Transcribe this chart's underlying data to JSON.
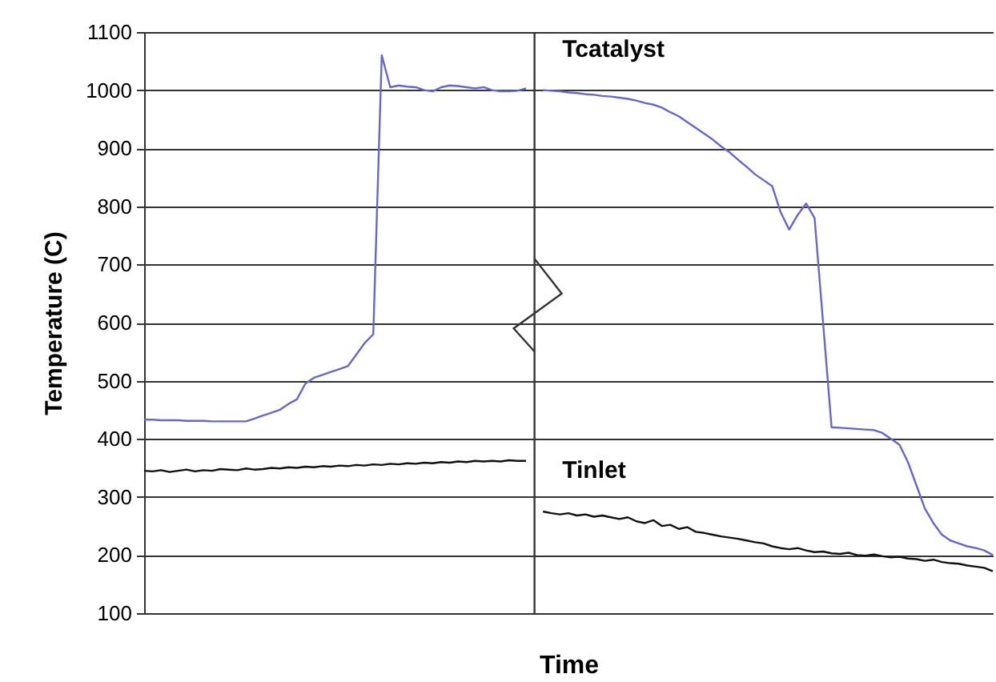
{
  "chart_data": {
    "type": "line",
    "xlabel": "Time",
    "ylabel": "Temperature (C)",
    "ylim": [
      100,
      1100
    ],
    "yticks": [
      100,
      200,
      300,
      400,
      500,
      600,
      700,
      800,
      900,
      1000,
      1100
    ],
    "grid": "y",
    "tick_labels": "y",
    "marker": "none",
    "line_style": "solid",
    "categories": [
      null,
      null,
      null,
      null,
      null,
      null,
      null,
      null,
      null,
      null,
      null,
      null,
      null,
      null,
      null,
      null,
      null,
      null,
      null,
      null,
      null,
      null,
      null,
      null,
      null,
      null,
      null,
      null,
      null,
      null,
      null,
      null,
      null,
      null,
      null,
      null,
      null,
      null,
      null,
      null,
      null,
      null,
      null,
      null,
      null,
      null,
      null,
      null,
      null,
      null,
      null,
      null,
      null,
      null,
      null,
      null,
      null,
      null,
      null,
      null,
      null,
      null,
      null,
      null,
      null,
      null,
      null,
      null,
      null,
      null,
      null,
      null,
      null,
      null,
      null,
      null,
      null,
      null,
      null,
      null,
      null,
      null,
      null,
      null,
      null,
      null,
      null,
      null,
      null,
      null,
      null,
      null,
      null,
      null,
      null,
      null,
      null,
      null,
      null,
      null,
      null
    ],
    "ref_lines": [
      {
        "axis": "x",
        "color": "#333333"
      }
    ],
    "series": [
      {
        "color": "#6666cc",
        "values": [
          433,
          433,
          432,
          432,
          432,
          431,
          431,
          431,
          430,
          430,
          430,
          430,
          430,
          435,
          440,
          445,
          450,
          460,
          468,
          495,
          505,
          510,
          515,
          520,
          525,
          545,
          565,
          580,
          1060,
          1005,
          1008,
          1006,
          1005,
          1000,
          998,
          1005,
          1008,
          1007,
          1005,
          1003,
          1005,
          1000,
          998,
          998,
          999,
          1003,
          null,
          null,
          null,
          null,
          null,
          null,
          null,
          null,
          null,
          null,
          null,
          null,
          null,
          null,
          null,
          null,
          null,
          null,
          null,
          null,
          null,
          null,
          null,
          null,
          null,
          null,
          null,
          null,
          null,
          null,
          null,
          null,
          null,
          null,
          null,
          null,
          null,
          null,
          null,
          null,
          null,
          null,
          null,
          null,
          null,
          null,
          null,
          null,
          null,
          null,
          null,
          null,
          null,
          null,
          null
        ]
      },
      {
        "name": "Tcatalyst",
        "color": "#6666cc",
        "values": [
          null,
          null,
          null,
          null,
          null,
          null,
          null,
          null,
          null,
          null,
          null,
          null,
          null,
          null,
          null,
          null,
          null,
          null,
          null,
          null,
          null,
          null,
          null,
          null,
          null,
          null,
          null,
          null,
          null,
          null,
          null,
          null,
          null,
          null,
          null,
          null,
          null,
          null,
          null,
          null,
          null,
          null,
          null,
          null,
          null,
          null,
          null,
          1000,
          999,
          998,
          996,
          995,
          993,
          992,
          990,
          989,
          987,
          985,
          982,
          978,
          975,
          970,
          962,
          955,
          945,
          935,
          925,
          915,
          903,
          893,
          880,
          868,
          855,
          845,
          835,
          790,
          760,
          785,
          805,
          780,
          600,
          420,
          419,
          418,
          417,
          416,
          415,
          410,
          400,
          390,
          360,
          320,
          280,
          255,
          235,
          225,
          220,
          215,
          212,
          208,
          200
        ]
      },
      {
        "color": "#111111",
        "values": [
          345,
          344,
          346,
          343,
          345,
          347,
          344,
          346,
          345,
          348,
          347,
          346,
          349,
          347,
          348,
          350,
          349,
          351,
          350,
          352,
          351,
          353,
          352,
          354,
          353,
          355,
          354,
          356,
          355,
          357,
          356,
          358,
          357,
          359,
          358,
          360,
          359,
          361,
          360,
          362,
          361,
          362,
          361,
          363,
          362,
          362,
          null,
          null,
          null,
          null,
          null,
          null,
          null,
          null,
          null,
          null,
          null,
          null,
          null,
          null,
          null,
          null,
          null,
          null,
          null,
          null,
          null,
          null,
          null,
          null,
          null,
          null,
          null,
          null,
          null,
          null,
          null,
          null,
          null,
          null,
          null,
          null,
          null,
          null,
          null,
          null,
          null,
          null,
          null,
          null,
          null,
          null,
          null,
          null,
          null,
          null,
          null,
          null,
          null,
          null,
          null
        ]
      },
      {
        "name": "Tinlet",
        "color": "#111111",
        "values": [
          null,
          null,
          null,
          null,
          null,
          null,
          null,
          null,
          null,
          null,
          null,
          null,
          null,
          null,
          null,
          null,
          null,
          null,
          null,
          null,
          null,
          null,
          null,
          null,
          null,
          null,
          null,
          null,
          null,
          null,
          null,
          null,
          null,
          null,
          null,
          null,
          null,
          null,
          null,
          null,
          null,
          null,
          null,
          null,
          null,
          null,
          null,
          275,
          272,
          270,
          272,
          268,
          270,
          266,
          268,
          265,
          262,
          265,
          258,
          255,
          260,
          250,
          252,
          245,
          248,
          240,
          238,
          235,
          232,
          230,
          228,
          225,
          222,
          220,
          215,
          212,
          210,
          212,
          208,
          205,
          206,
          203,
          202,
          204,
          200,
          199,
          201,
          198,
          196,
          197,
          194,
          193,
          190,
          192,
          188,
          186,
          185,
          182,
          180,
          178,
          172
        ]
      }
    ]
  }
}
